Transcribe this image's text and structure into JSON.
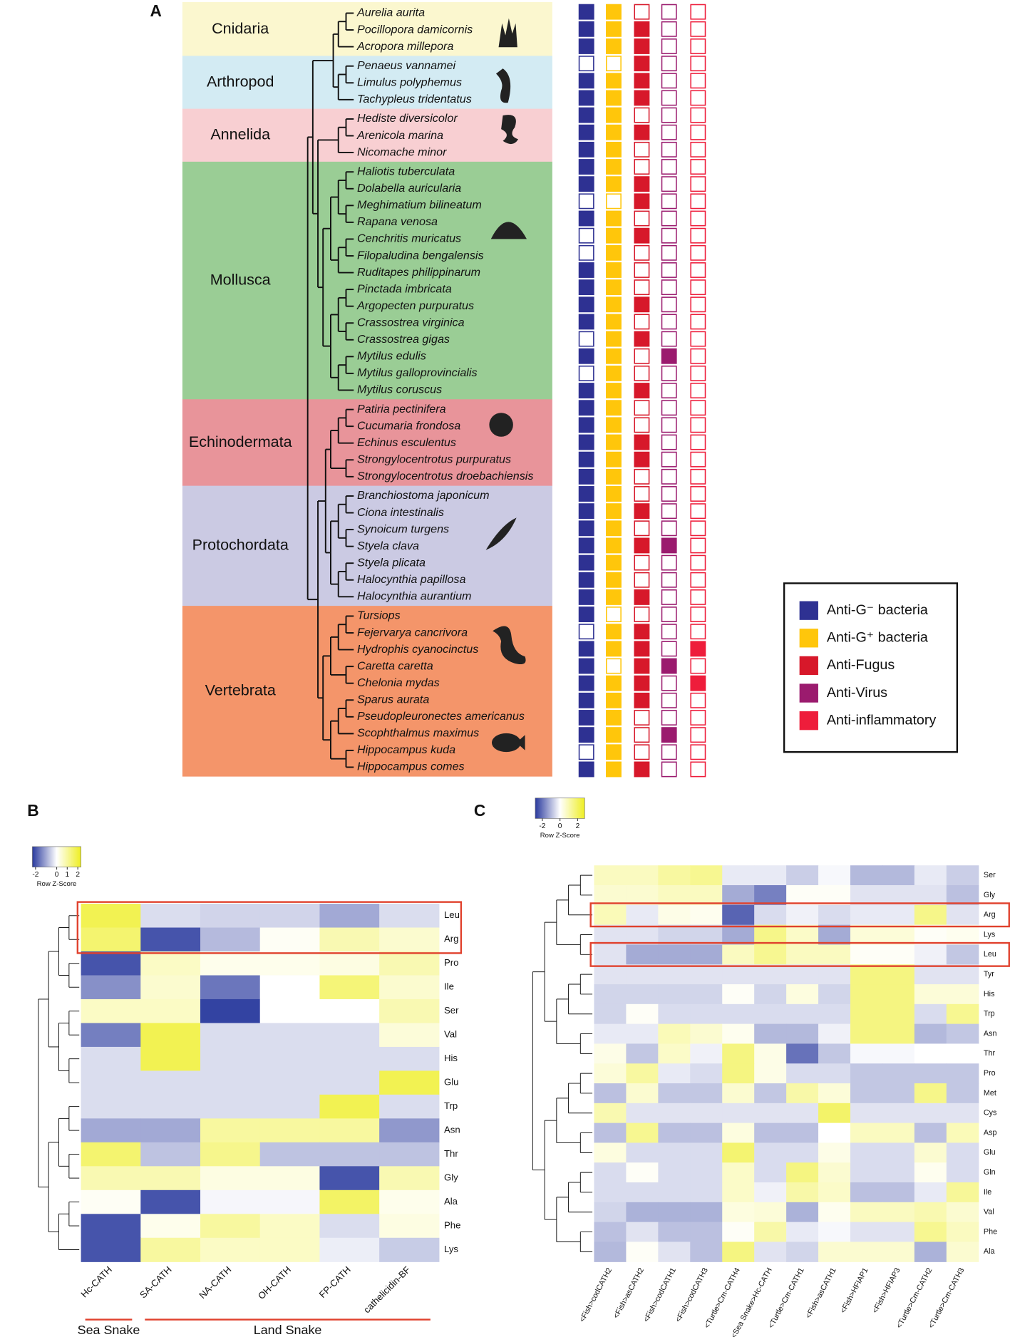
{
  "panel_a": {
    "label": "A",
    "groups": [
      {
        "name": "Cnidaria",
        "color": "#fbf7cf",
        "species": [
          {
            "name": "Aurelia aurita",
            "activity": [
              1,
              1,
              0,
              0,
              0
            ]
          },
          {
            "name": "Pocillopora damicornis",
            "activity": [
              1,
              1,
              1,
              0,
              0
            ]
          },
          {
            "name": "Acropora millepora",
            "activity": [
              1,
              1,
              1,
              0,
              0
            ]
          }
        ]
      },
      {
        "name": "Arthropod",
        "color": "#d3ebf3",
        "species": [
          {
            "name": "Penaeus vannamei",
            "activity": [
              0,
              0,
              1,
              0,
              0
            ]
          },
          {
            "name": "Limulus polyphemus",
            "activity": [
              1,
              1,
              1,
              0,
              0
            ]
          },
          {
            "name": "Tachypleus tridentatus",
            "activity": [
              1,
              1,
              1,
              0,
              0
            ]
          }
        ]
      },
      {
        "name": "Annelida",
        "color": "#f8cfd2",
        "species": [
          {
            "name": "Hediste diversicolor",
            "activity": [
              1,
              1,
              0,
              0,
              0
            ]
          },
          {
            "name": "Arenicola marina",
            "activity": [
              1,
              1,
              1,
              0,
              0
            ]
          },
          {
            "name": "Nicomache minor",
            "activity": [
              1,
              1,
              0,
              0,
              0
            ]
          }
        ]
      },
      {
        "name": "Mollusca",
        "color": "#9acd95",
        "species": [
          {
            "name": "Haliotis tuberculata",
            "activity": [
              1,
              1,
              0,
              0,
              0
            ]
          },
          {
            "name": "Dolabella auricularia",
            "activity": [
              1,
              1,
              1,
              0,
              0
            ]
          },
          {
            "name": "Meghimatium bilineatum",
            "activity": [
              0,
              0,
              1,
              0,
              0
            ]
          },
          {
            "name": "Rapana venosa",
            "activity": [
              1,
              1,
              0,
              0,
              0
            ]
          },
          {
            "name": "Cenchritis muricatus",
            "activity": [
              0,
              1,
              1,
              0,
              0
            ]
          },
          {
            "name": "Filopaludina bengalensis",
            "activity": [
              0,
              1,
              0,
              0,
              0
            ]
          },
          {
            "name": "Ruditapes philippinarum",
            "activity": [
              1,
              1,
              0,
              0,
              0
            ]
          },
          {
            "name": "Pinctada imbricata",
            "activity": [
              1,
              1,
              0,
              0,
              0
            ]
          },
          {
            "name": "Argopecten purpuratus",
            "activity": [
              1,
              1,
              1,
              0,
              0
            ]
          },
          {
            "name": "Crassostrea virginica",
            "activity": [
              1,
              1,
              0,
              0,
              0
            ]
          },
          {
            "name": "Crassostrea gigas",
            "activity": [
              0,
              1,
              1,
              0,
              0
            ]
          },
          {
            "name": "Mytilus edulis",
            "activity": [
              1,
              1,
              0,
              1,
              0
            ]
          },
          {
            "name": "Mytilus galloprovincialis",
            "activity": [
              0,
              1,
              0,
              0,
              0
            ]
          },
          {
            "name": "Mytilus coruscus",
            "activity": [
              1,
              1,
              1,
              0,
              0
            ]
          }
        ]
      },
      {
        "name": "Echinodermata",
        "color": "#e8949a",
        "species": [
          {
            "name": "Patiria pectinifera",
            "activity": [
              1,
              1,
              0,
              0,
              0
            ]
          },
          {
            "name": "Cucumaria frondosa",
            "activity": [
              1,
              1,
              0,
              0,
              0
            ]
          },
          {
            "name": "Echinus esculentus",
            "activity": [
              1,
              1,
              1,
              0,
              0
            ]
          },
          {
            "name": "Strongylocentrotus purpuratus",
            "activity": [
              1,
              1,
              1,
              0,
              0
            ]
          },
          {
            "name": "Strongylocentrotus droebachiensis",
            "activity": [
              1,
              1,
              0,
              0,
              0
            ]
          }
        ]
      },
      {
        "name": "Protochordata",
        "color": "#cbcae3",
        "species": [
          {
            "name": "Branchiostoma japonicum",
            "activity": [
              1,
              1,
              0,
              0,
              0
            ]
          },
          {
            "name": "Ciona intestinalis",
            "activity": [
              1,
              1,
              1,
              0,
              0
            ]
          },
          {
            "name": "Synoicum turgens",
            "activity": [
              1,
              1,
              0,
              0,
              0
            ]
          },
          {
            "name": "Styela clava",
            "activity": [
              1,
              1,
              1,
              1,
              0
            ]
          },
          {
            "name": "Styela plicata",
            "activity": [
              1,
              1,
              0,
              0,
              0
            ]
          },
          {
            "name": "Halocynthia papillosa",
            "activity": [
              1,
              1,
              0,
              0,
              0
            ]
          },
          {
            "name": "Halocynthia aurantium",
            "activity": [
              1,
              1,
              1,
              0,
              0
            ]
          }
        ]
      },
      {
        "name": "Vertebrata",
        "color": "#f4956a",
        "species": [
          {
            "name": "Tursiops",
            "activity": [
              1,
              0,
              0,
              0,
              0
            ]
          },
          {
            "name": "Fejervarya cancrivora",
            "activity": [
              0,
              1,
              1,
              0,
              0
            ]
          },
          {
            "name": "Hydrophis cyanocinctus",
            "activity": [
              1,
              1,
              1,
              0,
              1
            ]
          },
          {
            "name": "Caretta caretta",
            "activity": [
              1,
              0,
              1,
              1,
              0
            ]
          },
          {
            "name": "Chelonia mydas",
            "activity": [
              1,
              1,
              1,
              0,
              1
            ]
          },
          {
            "name": "Sparus aurata",
            "activity": [
              1,
              1,
              1,
              0,
              0
            ]
          },
          {
            "name": "Pseudopleuronectes americanus",
            "activity": [
              1,
              1,
              0,
              0,
              0
            ]
          },
          {
            "name": "Scophthalmus maximus",
            "activity": [
              1,
              1,
              0,
              1,
              0
            ]
          },
          {
            "name": "Hippocampus kuda",
            "activity": [
              0,
              1,
              0,
              0,
              0
            ]
          },
          {
            "name": "Hippocampus comes",
            "activity": [
              1,
              1,
              1,
              0,
              0
            ]
          }
        ]
      }
    ],
    "legend": [
      {
        "label": "Anti-G⁻ bacteria",
        "color": "#2e3192"
      },
      {
        "label": "Anti-G⁺ bacteria",
        "color": "#ffc60b"
      },
      {
        "label": "Anti-Fugus",
        "color": "#d7182a"
      },
      {
        "label": "Anti-Virus",
        "color": "#9b1b6e"
      },
      {
        "label": "Anti-inflammatory",
        "color": "#ee1d3b"
      }
    ]
  },
  "panel_b": {
    "label": "B",
    "type": "heatmap",
    "colors": [
      "#2a3a9e",
      "#ffffff",
      "#eeee22"
    ],
    "colorbar": {
      "zlim": [
        -2.3,
        2.3
      ],
      "ticks": [
        -2,
        0,
        1,
        2
      ],
      "label": "Row Z-Score"
    },
    "columns": [
      "Hc-CATH",
      "SA-CATH",
      "NA-CATH",
      "OH-CATH",
      "FP-CATH",
      "cathelicidin-BF"
    ],
    "rows": [
      "Leu",
      "Arg",
      "Pro",
      "Ile",
      "Ser",
      "Val",
      "His",
      "Glu",
      "Trp",
      "Asn",
      "Thr",
      "Gly",
      "Ala",
      "Phe",
      "Lys"
    ],
    "values": [
      [
        1.8,
        -0.4,
        -0.5,
        -0.5,
        -1.0,
        -0.4
      ],
      [
        1.5,
        -2.0,
        -0.8,
        0.1,
        0.8,
        0.5
      ],
      [
        -2.0,
        0.6,
        0.2,
        0.2,
        0.3,
        0.8
      ],
      [
        -1.3,
        0.5,
        -1.6,
        0,
        1.4,
        0.5
      ],
      [
        0.6,
        0.6,
        -2.2,
        0,
        0,
        0.8
      ],
      [
        -1.5,
        1.8,
        -0.4,
        -0.4,
        -0.4,
        0.4
      ],
      [
        -0.4,
        1.8,
        -0.4,
        -0.4,
        -0.4,
        -0.4
      ],
      [
        -0.4,
        -0.4,
        -0.4,
        -0.4,
        -0.4,
        1.8
      ],
      [
        -0.4,
        -0.4,
        -0.4,
        -0.4,
        1.8,
        -0.4
      ],
      [
        -1.0,
        -1.0,
        1.0,
        1.0,
        1.0,
        -1.2
      ],
      [
        1.5,
        -0.7,
        1.2,
        -0.7,
        -0.7,
        -0.7
      ],
      [
        0.8,
        0.8,
        0.3,
        0.3,
        -2.0,
        0.8
      ],
      [
        0.1,
        -2.0,
        -0.1,
        -0.1,
        1.6,
        0.2
      ],
      [
        -2.0,
        0.2,
        1.0,
        0.6,
        -0.4,
        0.3
      ],
      [
        -2.0,
        1.0,
        0.6,
        0.6,
        -0.2,
        -0.6
      ]
    ],
    "groups": [
      {
        "label": "Sea Snake"
      },
      {
        "label": "Land Snake"
      }
    ]
  },
  "panel_c": {
    "label": "C",
    "type": "heatmap",
    "colors": [
      "#2a3a9e",
      "#ffffff",
      "#eeee22"
    ],
    "colorbar": {
      "zlim": [
        -2.8,
        2.8
      ],
      "ticks": [
        -2,
        0,
        2
      ],
      "label": "Row Z-Score"
    },
    "columns": [
      "<Fish>codCATH2",
      "<Fish>asCATH2",
      "<Fish>codCATH1",
      "<Fish>codCATH3",
      "<Turtle>Cm-CATH4",
      "<Sea Snake>Hc-CATH",
      "<Turtle>Cm-CATH1",
      "<Fish>asCATH1",
      "<Fish>HFIAP1",
      "<Fish>HFIAP3",
      "<Turtle>Cm-CATH2",
      "<Turtle>Cm-CATH3"
    ],
    "rows": [
      "Ser",
      "Gly",
      "Arg",
      "Lys",
      "Leu",
      "Tyr",
      "His",
      "Trp",
      "Asn",
      "Thr",
      "Pro",
      "Met",
      "Cys",
      "Asp",
      "Glu",
      "Gln",
      "Ile",
      "Val",
      "Phe",
      "Ala"
    ],
    "values": [
      [
        0.8,
        0.8,
        1.2,
        1.4,
        -0.3,
        -0.3,
        -0.7,
        -0.1,
        -1.0,
        -1.0,
        -0.3,
        -0.7
      ],
      [
        0.6,
        0.6,
        0.8,
        0.8,
        -1.2,
        -1.8,
        0.1,
        0.1,
        -0.4,
        -0.4,
        -0.4,
        -0.9
      ],
      [
        0.9,
        -0.3,
        0.3,
        0.2,
        -2.2,
        -0.5,
        -0.2,
        -0.5,
        -0.3,
        -0.3,
        1.5,
        -0.4
      ],
      [
        -0.4,
        -0.4,
        -0.6,
        -0.6,
        -1.2,
        1.5,
        0.7,
        -1.2,
        0.5,
        0.5,
        0.1,
        0.2
      ],
      [
        -0.4,
        -1.2,
        -1.2,
        -1.2,
        0.8,
        1.4,
        0.8,
        0.8,
        0.1,
        0.1,
        -0.2,
        -0.8
      ],
      [
        -0.4,
        -0.4,
        -0.4,
        -0.4,
        -0.4,
        -0.4,
        -0.4,
        -0.4,
        1.6,
        1.6,
        -0.4,
        -0.4
      ],
      [
        -0.6,
        -0.6,
        -0.6,
        -0.6,
        0.1,
        -0.6,
        0.4,
        -0.6,
        1.6,
        1.6,
        0.5,
        0.5
      ],
      [
        -0.6,
        0.1,
        -0.5,
        -0.5,
        -0.5,
        -0.5,
        -0.5,
        -0.5,
        1.6,
        1.6,
        -0.5,
        1.4
      ],
      [
        -0.3,
        -0.3,
        0.9,
        0.6,
        0.2,
        -1.0,
        -1.0,
        -0.2,
        1.6,
        1.6,
        -1.0,
        -0.8
      ],
      [
        0.3,
        -0.8,
        0.7,
        -0.2,
        1.6,
        0.3,
        -2.0,
        -0.8,
        -0.1,
        -0.1,
        0,
        0
      ],
      [
        0.5,
        1.2,
        -0.3,
        -0.5,
        1.6,
        0.3,
        -0.5,
        -0.5,
        -0.8,
        -0.8,
        -0.8,
        -0.8
      ],
      [
        -0.9,
        0.6,
        -0.8,
        -0.8,
        0.6,
        -0.8,
        1.1,
        0.5,
        -0.8,
        -0.8,
        1.5,
        -0.8
      ],
      [
        1.0,
        -0.4,
        -0.4,
        -0.4,
        -0.4,
        -0.4,
        -0.4,
        1.9,
        -0.4,
        -0.4,
        -0.4,
        -0.4
      ],
      [
        -0.9,
        1.4,
        -0.9,
        -0.9,
        0.4,
        -0.9,
        -0.9,
        0,
        0.8,
        0.8,
        -0.9,
        0.9
      ],
      [
        0.4,
        -0.5,
        -0.5,
        -0.5,
        1.8,
        -0.5,
        -0.5,
        0.3,
        -0.5,
        -0.5,
        0.6,
        -0.5
      ],
      [
        -0.5,
        0.1,
        -0.5,
        -0.5,
        0.7,
        -0.5,
        1.6,
        0.6,
        -0.5,
        -0.5,
        0.2,
        -0.5
      ],
      [
        -0.5,
        -0.5,
        -0.5,
        -0.5,
        0.7,
        -0.2,
        1.1,
        0.7,
        -0.9,
        -0.9,
        -0.3,
        1.3
      ],
      [
        -0.6,
        -1.1,
        -1.1,
        -1.1,
        0.4,
        0.5,
        -1.1,
        0.2,
        0.8,
        0.8,
        1.0,
        0.6
      ],
      [
        -0.9,
        -0.4,
        -0.9,
        -0.9,
        0.1,
        1.1,
        -0.3,
        -0.1,
        -0.4,
        -0.4,
        1.4,
        0.8
      ],
      [
        -1.0,
        0.1,
        -0.4,
        -0.9,
        1.6,
        -0.4,
        -0.6,
        0.6,
        0.6,
        0.6,
        -1.1,
        0.6
      ]
    ]
  }
}
